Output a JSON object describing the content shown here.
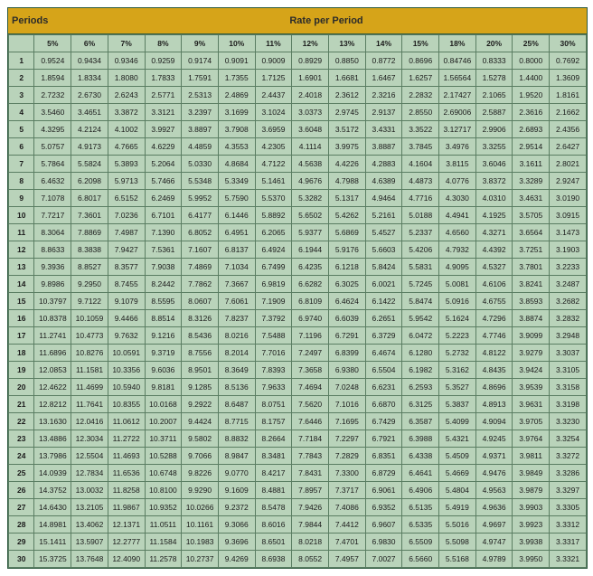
{
  "title_left": "Periods",
  "title_center": "Rate per Period",
  "colors": {
    "header_bg": "#d6a419",
    "cell_bg": "#b9d3ba",
    "border": "#5a7d62",
    "outer_border": "#2e5b3f",
    "text": "#1a1a1a"
  },
  "typography": {
    "font_family": "Arial, Helvetica, sans-serif",
    "header_fontsize_pt": 8,
    "cell_fontsize_pt": 6
  },
  "columns": [
    "5%",
    "6%",
    "7%",
    "8%",
    "9%",
    "10%",
    "11%",
    "12%",
    "13%",
    "14%",
    "15%",
    "18%",
    "20%",
    "25%",
    "30%"
  ],
  "rows": [
    {
      "p": "1",
      "v": [
        "0.9524",
        "0.9434",
        "0.9346",
        "0.9259",
        "0.9174",
        "0.9091",
        "0.9009",
        "0.8929",
        "0.8850",
        "0.8772",
        "0.8696",
        "0.84746",
        "0.8333",
        "0.8000",
        "0.7692"
      ]
    },
    {
      "p": "2",
      "v": [
        "1.8594",
        "1.8334",
        "1.8080",
        "1.7833",
        "1.7591",
        "1.7355",
        "1.7125",
        "1.6901",
        "1.6681",
        "1.6467",
        "1.6257",
        "1.56564",
        "1.5278",
        "1.4400",
        "1.3609"
      ]
    },
    {
      "p": "3",
      "v": [
        "2.7232",
        "2.6730",
        "2.6243",
        "2.5771",
        "2.5313",
        "2.4869",
        "2.4437",
        "2.4018",
        "2.3612",
        "2.3216",
        "2.2832",
        "2.17427",
        "2.1065",
        "1.9520",
        "1.8161"
      ]
    },
    {
      "p": "4",
      "v": [
        "3.5460",
        "3.4651",
        "3.3872",
        "3.3121",
        "3.2397",
        "3.1699",
        "3.1024",
        "3.0373",
        "2.9745",
        "2.9137",
        "2.8550",
        "2.69006",
        "2.5887",
        "2.3616",
        "2.1662"
      ]
    },
    {
      "p": "5",
      "v": [
        "4.3295",
        "4.2124",
        "4.1002",
        "3.9927",
        "3.8897",
        "3.7908",
        "3.6959",
        "3.6048",
        "3.5172",
        "3.4331",
        "3.3522",
        "3.12717",
        "2.9906",
        "2.6893",
        "2.4356"
      ]
    },
    {
      "p": "6",
      "v": [
        "5.0757",
        "4.9173",
        "4.7665",
        "4.6229",
        "4.4859",
        "4.3553",
        "4.2305",
        "4.1114",
        "3.9975",
        "3.8887",
        "3.7845",
        "3.4976",
        "3.3255",
        "2.9514",
        "2.6427"
      ]
    },
    {
      "p": "7",
      "v": [
        "5.7864",
        "5.5824",
        "5.3893",
        "5.2064",
        "5.0330",
        "4.8684",
        "4.7122",
        "4.5638",
        "4.4226",
        "4.2883",
        "4.1604",
        "3.8115",
        "3.6046",
        "3.1611",
        "2.8021"
      ]
    },
    {
      "p": "8",
      "v": [
        "6.4632",
        "6.2098",
        "5.9713",
        "5.7466",
        "5.5348",
        "5.3349",
        "5.1461",
        "4.9676",
        "4.7988",
        "4.6389",
        "4.4873",
        "4.0776",
        "3.8372",
        "3.3289",
        "2.9247"
      ]
    },
    {
      "p": "9",
      "v": [
        "7.1078",
        "6.8017",
        "6.5152",
        "6.2469",
        "5.9952",
        "5.7590",
        "5.5370",
        "5.3282",
        "5.1317",
        "4.9464",
        "4.7716",
        "4.3030",
        "4.0310",
        "3.4631",
        "3.0190"
      ]
    },
    {
      "p": "10",
      "v": [
        "7.7217",
        "7.3601",
        "7.0236",
        "6.7101",
        "6.4177",
        "6.1446",
        "5.8892",
        "5.6502",
        "5.4262",
        "5.2161",
        "5.0188",
        "4.4941",
        "4.1925",
        "3.5705",
        "3.0915"
      ]
    },
    {
      "p": "11",
      "v": [
        "8.3064",
        "7.8869",
        "7.4987",
        "7.1390",
        "6.8052",
        "6.4951",
        "6.2065",
        "5.9377",
        "5.6869",
        "5.4527",
        "5.2337",
        "4.6560",
        "4.3271",
        "3.6564",
        "3.1473"
      ]
    },
    {
      "p": "12",
      "v": [
        "8.8633",
        "8.3838",
        "7.9427",
        "7.5361",
        "7.1607",
        "6.8137",
        "6.4924",
        "6.1944",
        "5.9176",
        "5.6603",
        "5.4206",
        "4.7932",
        "4.4392",
        "3.7251",
        "3.1903"
      ]
    },
    {
      "p": "13",
      "v": [
        "9.3936",
        "8.8527",
        "8.3577",
        "7.9038",
        "7.4869",
        "7.1034",
        "6.7499",
        "6.4235",
        "6.1218",
        "5.8424",
        "5.5831",
        "4.9095",
        "4.5327",
        "3.7801",
        "3.2233"
      ]
    },
    {
      "p": "14",
      "v": [
        "9.8986",
        "9.2950",
        "8.7455",
        "8.2442",
        "7.7862",
        "7.3667",
        "6.9819",
        "6.6282",
        "6.3025",
        "6.0021",
        "5.7245",
        "5.0081",
        "4.6106",
        "3.8241",
        "3.2487"
      ]
    },
    {
      "p": "15",
      "v": [
        "10.3797",
        "9.7122",
        "9.1079",
        "8.5595",
        "8.0607",
        "7.6061",
        "7.1909",
        "6.8109",
        "6.4624",
        "6.1422",
        "5.8474",
        "5.0916",
        "4.6755",
        "3.8593",
        "3.2682"
      ]
    },
    {
      "p": "16",
      "v": [
        "10.8378",
        "10.1059",
        "9.4466",
        "8.8514",
        "8.3126",
        "7.8237",
        "7.3792",
        "6.9740",
        "6.6039",
        "6.2651",
        "5.9542",
        "5.1624",
        "4.7296",
        "3.8874",
        "3.2832"
      ]
    },
    {
      "p": "17",
      "v": [
        "11.2741",
        "10.4773",
        "9.7632",
        "9.1216",
        "8.5436",
        "8.0216",
        "7.5488",
        "7.1196",
        "6.7291",
        "6.3729",
        "6.0472",
        "5.2223",
        "4.7746",
        "3.9099",
        "3.2948"
      ]
    },
    {
      "p": "18",
      "v": [
        "11.6896",
        "10.8276",
        "10.0591",
        "9.3719",
        "8.7556",
        "8.2014",
        "7.7016",
        "7.2497",
        "6.8399",
        "6.4674",
        "6.1280",
        "5.2732",
        "4.8122",
        "3.9279",
        "3.3037"
      ]
    },
    {
      "p": "19",
      "v": [
        "12.0853",
        "11.1581",
        "10.3356",
        "9.6036",
        "8.9501",
        "8.3649",
        "7.8393",
        "7.3658",
        "6.9380",
        "6.5504",
        "6.1982",
        "5.3162",
        "4.8435",
        "3.9424",
        "3.3105"
      ]
    },
    {
      "p": "20",
      "v": [
        "12.4622",
        "11.4699",
        "10.5940",
        "9.8181",
        "9.1285",
        "8.5136",
        "7.9633",
        "7.4694",
        "7.0248",
        "6.6231",
        "6.2593",
        "5.3527",
        "4.8696",
        "3.9539",
        "3.3158"
      ]
    },
    {
      "p": "21",
      "v": [
        "12.8212",
        "11.7641",
        "10.8355",
        "10.0168",
        "9.2922",
        "8.6487",
        "8.0751",
        "7.5620",
        "7.1016",
        "6.6870",
        "6.3125",
        "5.3837",
        "4.8913",
        "3.9631",
        "3.3198"
      ]
    },
    {
      "p": "22",
      "v": [
        "13.1630",
        "12.0416",
        "11.0612",
        "10.2007",
        "9.4424",
        "8.7715",
        "8.1757",
        "7.6446",
        "7.1695",
        "6.7429",
        "6.3587",
        "5.4099",
        "4.9094",
        "3.9705",
        "3.3230"
      ]
    },
    {
      "p": "23",
      "v": [
        "13.4886",
        "12.3034",
        "11.2722",
        "10.3711",
        "9.5802",
        "8.8832",
        "8.2664",
        "7.7184",
        "7.2297",
        "6.7921",
        "6.3988",
        "5.4321",
        "4.9245",
        "3.9764",
        "3.3254"
      ]
    },
    {
      "p": "24",
      "v": [
        "13.7986",
        "12.5504",
        "11.4693",
        "10.5288",
        "9.7066",
        "8.9847",
        "8.3481",
        "7.7843",
        "7.2829",
        "6.8351",
        "6.4338",
        "5.4509",
        "4.9371",
        "3.9811",
        "3.3272"
      ]
    },
    {
      "p": "25",
      "v": [
        "14.0939",
        "12.7834",
        "11.6536",
        "10.6748",
        "9.8226",
        "9.0770",
        "8.4217",
        "7.8431",
        "7.3300",
        "6.8729",
        "6.4641",
        "5.4669",
        "4.9476",
        "3.9849",
        "3.3286"
      ]
    },
    {
      "p": "26",
      "v": [
        "14.3752",
        "13.0032",
        "11.8258",
        "10.8100",
        "9.9290",
        "9.1609",
        "8.4881",
        "7.8957",
        "7.3717",
        "6.9061",
        "6.4906",
        "5.4804",
        "4.9563",
        "3.9879",
        "3.3297"
      ]
    },
    {
      "p": "27",
      "v": [
        "14.6430",
        "13.2105",
        "11.9867",
        "10.9352",
        "10.0266",
        "9.2372",
        "8.5478",
        "7.9426",
        "7.4086",
        "6.9352",
        "6.5135",
        "5.4919",
        "4.9636",
        "3.9903",
        "3.3305"
      ]
    },
    {
      "p": "28",
      "v": [
        "14.8981",
        "13.4062",
        "12.1371",
        "11.0511",
        "10.1161",
        "9.3066",
        "8.6016",
        "7.9844",
        "7.4412",
        "6.9607",
        "6.5335",
        "5.5016",
        "4.9697",
        "3.9923",
        "3.3312"
      ]
    },
    {
      "p": "29",
      "v": [
        "15.1411",
        "13.5907",
        "12.2777",
        "11.1584",
        "10.1983",
        "9.3696",
        "8.6501",
        "8.0218",
        "7.4701",
        "6.9830",
        "6.5509",
        "5.5098",
        "4.9747",
        "3.9938",
        "3.3317"
      ]
    },
    {
      "p": "30",
      "v": [
        "15.3725",
        "13.7648",
        "12.4090",
        "11.2578",
        "10.2737",
        "9.4269",
        "8.6938",
        "8.0552",
        "7.4957",
        "7.0027",
        "6.5660",
        "5.5168",
        "4.9789",
        "3.9950",
        "3.3321"
      ]
    }
  ]
}
